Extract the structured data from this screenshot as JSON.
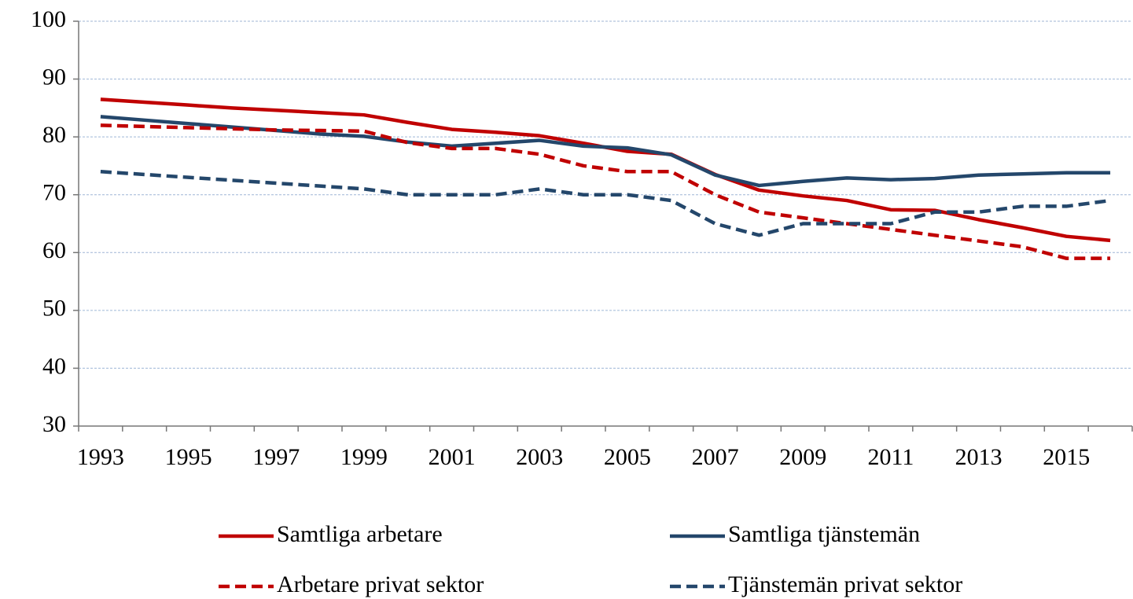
{
  "chart_data": {
    "type": "line",
    "categories": [
      "1993",
      null,
      "1995",
      null,
      "1997",
      null,
      "1999",
      null,
      "2001",
      null,
      "2003",
      null,
      "2005",
      null,
      "2007",
      null,
      "2009",
      null,
      "2011",
      null,
      "2013",
      null,
      "2015",
      null
    ],
    "series": [
      {
        "name": "Samtliga arbetare",
        "color": "#c00000",
        "dashed": false,
        "values": [
          86.5,
          86,
          85.5,
          85,
          84.6,
          84.2,
          83.8,
          82.5,
          81.3,
          80.8,
          80.2,
          78.9,
          77.5,
          77,
          73.5,
          70.8,
          69.8,
          69,
          67.4,
          67.3,
          65.7,
          64.3,
          62.8,
          62.1
        ]
      },
      {
        "name": "Samtliga tjänstemän",
        "color": "#24476b",
        "dashed": false,
        "values": [
          83.5,
          82.9,
          82.3,
          81.7,
          81.1,
          80.5,
          80.1,
          79.1,
          78.4,
          78.9,
          79.4,
          78.4,
          78.1,
          76.9,
          73.4,
          71.6,
          72.3,
          72.9,
          72.6,
          72.8,
          73.4,
          73.6,
          73.8,
          73.8
        ]
      },
      {
        "name": "Arbetare privat sektor",
        "color": "#c00000",
        "dashed": true,
        "values": [
          82,
          81.8,
          81.6,
          81.4,
          81.2,
          81.1,
          81,
          79,
          78,
          78,
          77,
          75,
          74,
          74,
          70,
          67,
          66,
          65,
          64,
          63,
          62,
          61,
          59,
          59
        ]
      },
      {
        "name": "Tjänstemän privat sektor",
        "color": "#24476b",
        "dashed": true,
        "values": [
          74,
          73.5,
          73,
          72.5,
          72,
          71.5,
          71,
          70,
          70,
          70,
          71,
          70,
          70,
          69,
          65,
          63,
          65,
          65,
          65,
          67,
          67,
          68,
          68,
          69
        ]
      }
    ],
    "ylim": [
      30,
      100
    ],
    "yticks": [
      30,
      40,
      50,
      60,
      70,
      80,
      90,
      100
    ],
    "grid": true
  }
}
